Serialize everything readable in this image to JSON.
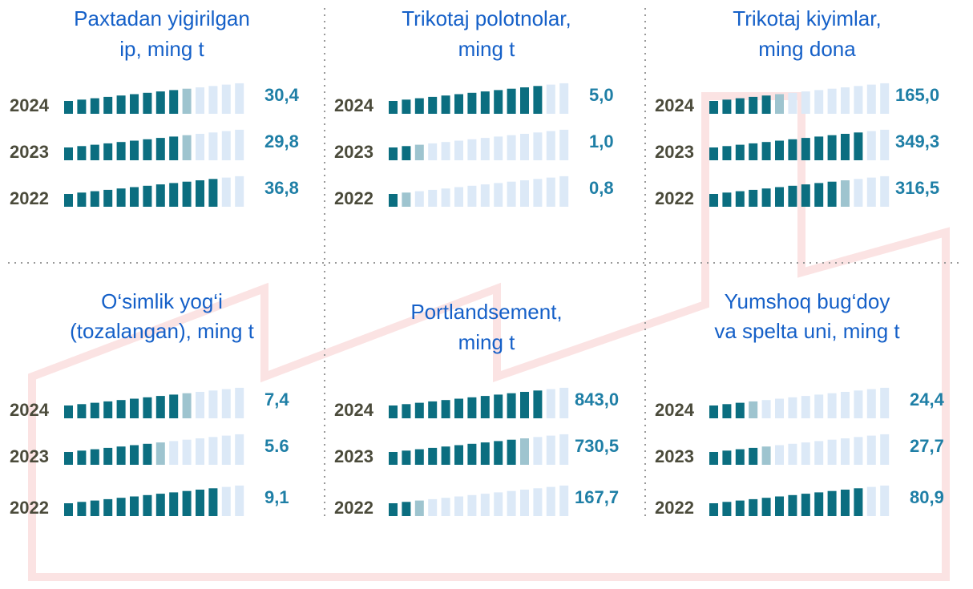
{
  "chart_data": [
    {
      "type": "meter",
      "title": [
        "Paxtadan yigirilgan",
        "ip, ming t"
      ],
      "categories": [
        "2024",
        "2023",
        "2022"
      ],
      "values": [
        30.4,
        29.8,
        36.8
      ],
      "value_labels": [
        "30,4",
        "29,8",
        "36,8"
      ],
      "color": "#0b6e80"
    },
    {
      "type": "meter",
      "title": [
        "Trikotaj polotnolar,",
        "ming t"
      ],
      "categories": [
        "2024",
        "2023",
        "2022"
      ],
      "values": [
        5.0,
        1.0,
        0.8
      ],
      "value_labels": [
        "5,0",
        "1,0",
        "0,8"
      ],
      "color": "#0b6e80"
    },
    {
      "type": "meter",
      "title": [
        "Trikotaj kiyimlar,",
        "ming dona"
      ],
      "categories": [
        "2024",
        "2023",
        "2022"
      ],
      "values": [
        165.0,
        349.3,
        316.5
      ],
      "value_labels": [
        "165,0",
        "349,3",
        "316,5"
      ],
      "color": "#0b6e80"
    },
    {
      "type": "meter",
      "title": [
        "O‘simlik yog‘i",
        "(tozalangan), ming t"
      ],
      "categories": [
        "2024",
        "2023",
        "2022"
      ],
      "values": [
        7.4,
        5.6,
        9.1
      ],
      "value_labels": [
        "7,4",
        "5.6",
        "9,1"
      ],
      "color": "#0b6e80"
    },
    {
      "type": "meter",
      "title": [
        "Portlandsement,",
        "ming t"
      ],
      "categories": [
        "2024",
        "2023",
        "2022"
      ],
      "values": [
        843.0,
        730.5,
        167.7
      ],
      "value_labels": [
        "843,0",
        "730,5",
        "167,7"
      ],
      "color": "#0b6e80"
    },
    {
      "type": "meter",
      "title": [
        "Yumshoq bug‘doy",
        "va spelta uni, ming t"
      ],
      "categories": [
        "2024",
        "2023",
        "2022"
      ],
      "values": [
        24.4,
        27.7,
        80.9
      ],
      "value_labels": [
        "24,4",
        "27,7",
        "80,9"
      ],
      "color": "#0b6e80"
    }
  ]
}
